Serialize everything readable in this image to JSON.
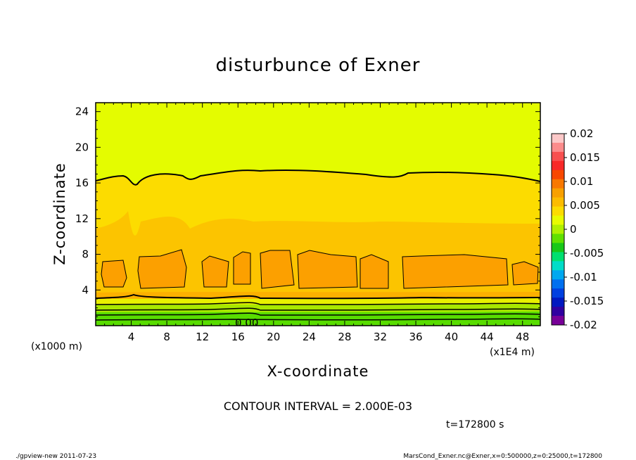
{
  "chart_data": {
    "type": "heatmap",
    "title": "disturbunce of Exner",
    "xlabel": "X-coordinate",
    "ylabel": "Z-coordinate",
    "x_scale_note": "(x1E4 m)",
    "y_scale_note": "(x1000 m)",
    "xlim": [
      0,
      50
    ],
    "ylim": [
      0,
      25
    ],
    "x_ticks": [
      4,
      8,
      12,
      16,
      20,
      24,
      28,
      32,
      36,
      40,
      44,
      48
    ],
    "y_ticks": [
      4,
      8,
      12,
      16,
      20,
      24
    ],
    "x_tick_labels": [
      "4",
      "8",
      "12",
      "16",
      "20",
      "24",
      "28",
      "32",
      "36",
      "40",
      "44",
      "48"
    ],
    "y_tick_labels": [
      "4",
      "8",
      "12",
      "16",
      "20",
      "24"
    ],
    "contour_interval_text": "CONTOUR INTERVAL = 2.000E-03",
    "contour_label": "0.00",
    "time_text": "t=172800 s",
    "colorbar": {
      "ticks": [
        "0.02",
        "0.015",
        "0.01",
        "0.005",
        "0",
        "-0.005",
        "-0.01",
        "-0.015",
        "-0.02"
      ],
      "tick_values": [
        0.02,
        0.015,
        0.01,
        0.005,
        0,
        -0.005,
        -0.01,
        -0.015,
        -0.02
      ],
      "range": [
        -0.02,
        0.02
      ],
      "colors_top_to_bottom": [
        "#fcc8c8",
        "#fc8c8c",
        "#f85050",
        "#f82828",
        "#f84800",
        "#f87800",
        "#f8a000",
        "#fcbc00",
        "#fcdc00",
        "#e8fc00",
        "#b0f000",
        "#60e000",
        "#18c818",
        "#00e070",
        "#00dcc8",
        "#00a8f0",
        "#0070f0",
        "#0040e0",
        "#0018c0",
        "#3000a0",
        "#780098"
      ]
    },
    "series": [
      {
        "level": 0.01,
        "band_z": [
          14.5,
          17.2
        ]
      },
      {
        "level": 0.008,
        "band_z": [
          8.0,
          14.5
        ]
      },
      {
        "level": 0.012,
        "cells_z": [
          4.5,
          8.3
        ]
      },
      {
        "level": 0.006,
        "band_z": [
          3.2,
          4.5
        ]
      },
      {
        "level": 0.004,
        "band_z": [
          2.4,
          3.2
        ]
      },
      {
        "level": 0.002,
        "band_z": [
          1.6,
          2.4
        ]
      },
      {
        "level": 0.0,
        "band_z": [
          0.0,
          1.6
        ]
      }
    ]
  },
  "footer": {
    "left": "./gpview-new   2011-07-23",
    "right": "MarsCond_Exner.nc@Exner,x=0:500000,z=0:25000,t=172800"
  }
}
